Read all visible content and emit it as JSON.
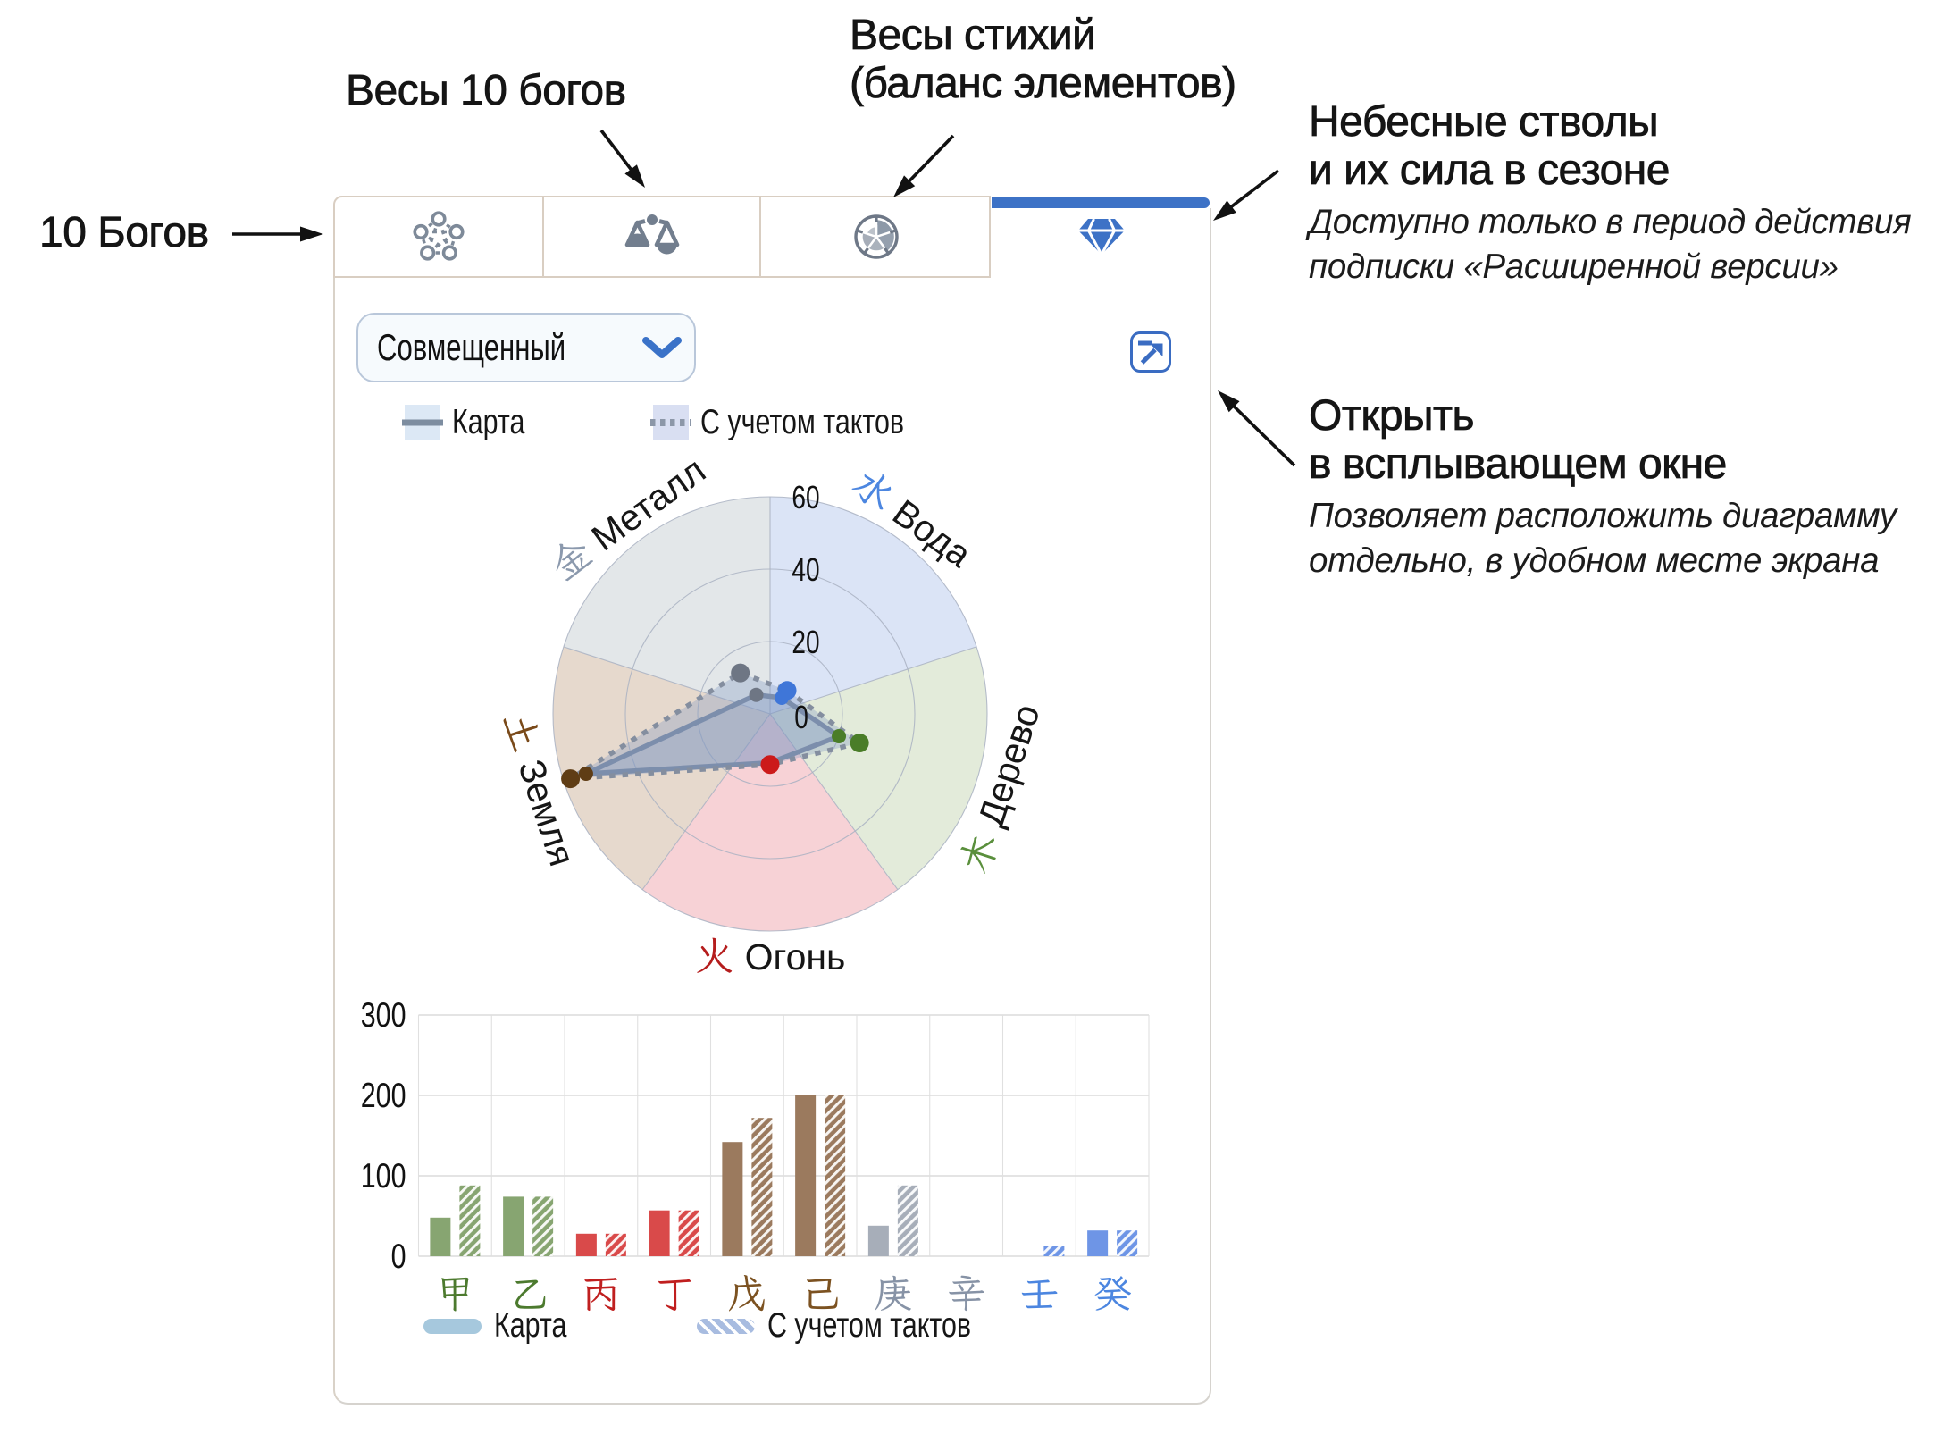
{
  "annotations": {
    "ten_gods": "10 Богов",
    "scales_ten_gods": "Весы 10 богов",
    "element_scales_1": "Весы стихий",
    "element_scales_2": "(баланс элементов)",
    "stems_1": "Небесные стволы",
    "stems_2": "и их сила в сезоне",
    "stems_note_1": "Доступно только в период действия",
    "stems_note_2": "подписки «Расширенной версии»",
    "popup_1": "Открыть",
    "popup_2": "в всплывающем окне",
    "popup_note_1": "Позволяет расположить диаграмму",
    "popup_note_2": "отдельно, в удобном месте экрана"
  },
  "panel": {
    "accent_color": "#3d72c6",
    "tab_border_color": "#d9cec2",
    "panel_border_color": "#d6d3ce",
    "tabs": [
      {
        "name": "ten-gods",
        "icon": "network-icon",
        "active": false
      },
      {
        "name": "ten-gods-scales",
        "icon": "scales-icon",
        "active": false
      },
      {
        "name": "elements-balance",
        "icon": "pie-icon",
        "active": false
      },
      {
        "name": "heavenly-stems",
        "icon": "diamond-icon",
        "active": true
      }
    ],
    "dropdown_value": "Совмещенный",
    "radar_legend": [
      {
        "label": "Карта",
        "style": "solid"
      },
      {
        "label": "С учетом тактов",
        "style": "dotted"
      }
    ],
    "bar_legend": [
      {
        "label": "Карта",
        "style": "solid"
      },
      {
        "label": "С учетом тактов",
        "style": "hatched"
      }
    ]
  },
  "chart_data": [
    {
      "type": "radar",
      "r_ticks": [
        0,
        20,
        40,
        60
      ],
      "r_max": 60,
      "categories": [
        {
          "key": "water",
          "char": "水",
          "label": "Вода",
          "angle_deg": 54,
          "char_color": "#4c86e0",
          "sector_color": "#dbe4f6",
          "dot_color": "#3f76d8"
        },
        {
          "key": "wood",
          "char": "木",
          "label": "Дерево",
          "angle_deg": -18,
          "char_color": "#5a8f3c",
          "sector_color": "#e3ebda",
          "dot_color": "#4a7d28"
        },
        {
          "key": "fire",
          "char": "火",
          "label": "Огонь",
          "angle_deg": -90,
          "char_color": "#b51d1d",
          "sector_color": "#f7d2d6",
          "dot_color": "#cc1a1a"
        },
        {
          "key": "earth",
          "char": "土",
          "label": "Земля",
          "angle_deg": 198,
          "char_color": "#7a4a1a",
          "sector_color": "#e6d9cd",
          "dot_color": "#5f3d15"
        },
        {
          "key": "metal",
          "char": "金",
          "label": "Металл",
          "angle_deg": 126,
          "char_color": "#8b99ad",
          "sector_color": "#e3e7e9",
          "dot_color": "#6e7684"
        }
      ],
      "series": [
        {
          "name": "Карта",
          "style": "solid",
          "values": [
            5.5,
            20,
            13.5,
            53.5,
            6.5
          ]
        },
        {
          "name": "С учетом тактов",
          "style": "dotted",
          "values": [
            8,
            26,
            14,
            58,
            14
          ]
        }
      ]
    },
    {
      "type": "bar",
      "ylim": [
        0,
        300
      ],
      "y_ticks": [
        0,
        100,
        200,
        300
      ],
      "categories": [
        {
          "char": "甲",
          "color": "#87a571",
          "label_color": "#4c7a2e"
        },
        {
          "char": "乙",
          "color": "#87a571",
          "label_color": "#4c7a2e"
        },
        {
          "char": "丙",
          "color": "#d94a4a",
          "label_color": "#c01f1f"
        },
        {
          "char": "丁",
          "color": "#d94a4a",
          "label_color": "#c01f1f"
        },
        {
          "char": "戊",
          "color": "#9b7a5e",
          "label_color": "#7c5221"
        },
        {
          "char": "己",
          "color": "#9b7a5e",
          "label_color": "#7c5221"
        },
        {
          "char": "庚",
          "color": "#a7aeb9",
          "label_color": "#8793a6"
        },
        {
          "char": "辛",
          "color": "#a7aeb9",
          "label_color": "#8793a6"
        },
        {
          "char": "壬",
          "color": "#6e95e6",
          "label_color": "#4c86e0"
        },
        {
          "char": "癸",
          "color": "#6e95e6",
          "label_color": "#4c86e0"
        }
      ],
      "series": [
        {
          "name": "Карта",
          "style": "solid",
          "values": [
            48,
            74,
            28,
            57,
            142,
            200,
            38,
            0,
            0,
            32
          ]
        },
        {
          "name": "С учетом тактов",
          "style": "hatched",
          "values": [
            88,
            74,
            28,
            57,
            172,
            200,
            88,
            0,
            13,
            32
          ]
        }
      ]
    }
  ]
}
